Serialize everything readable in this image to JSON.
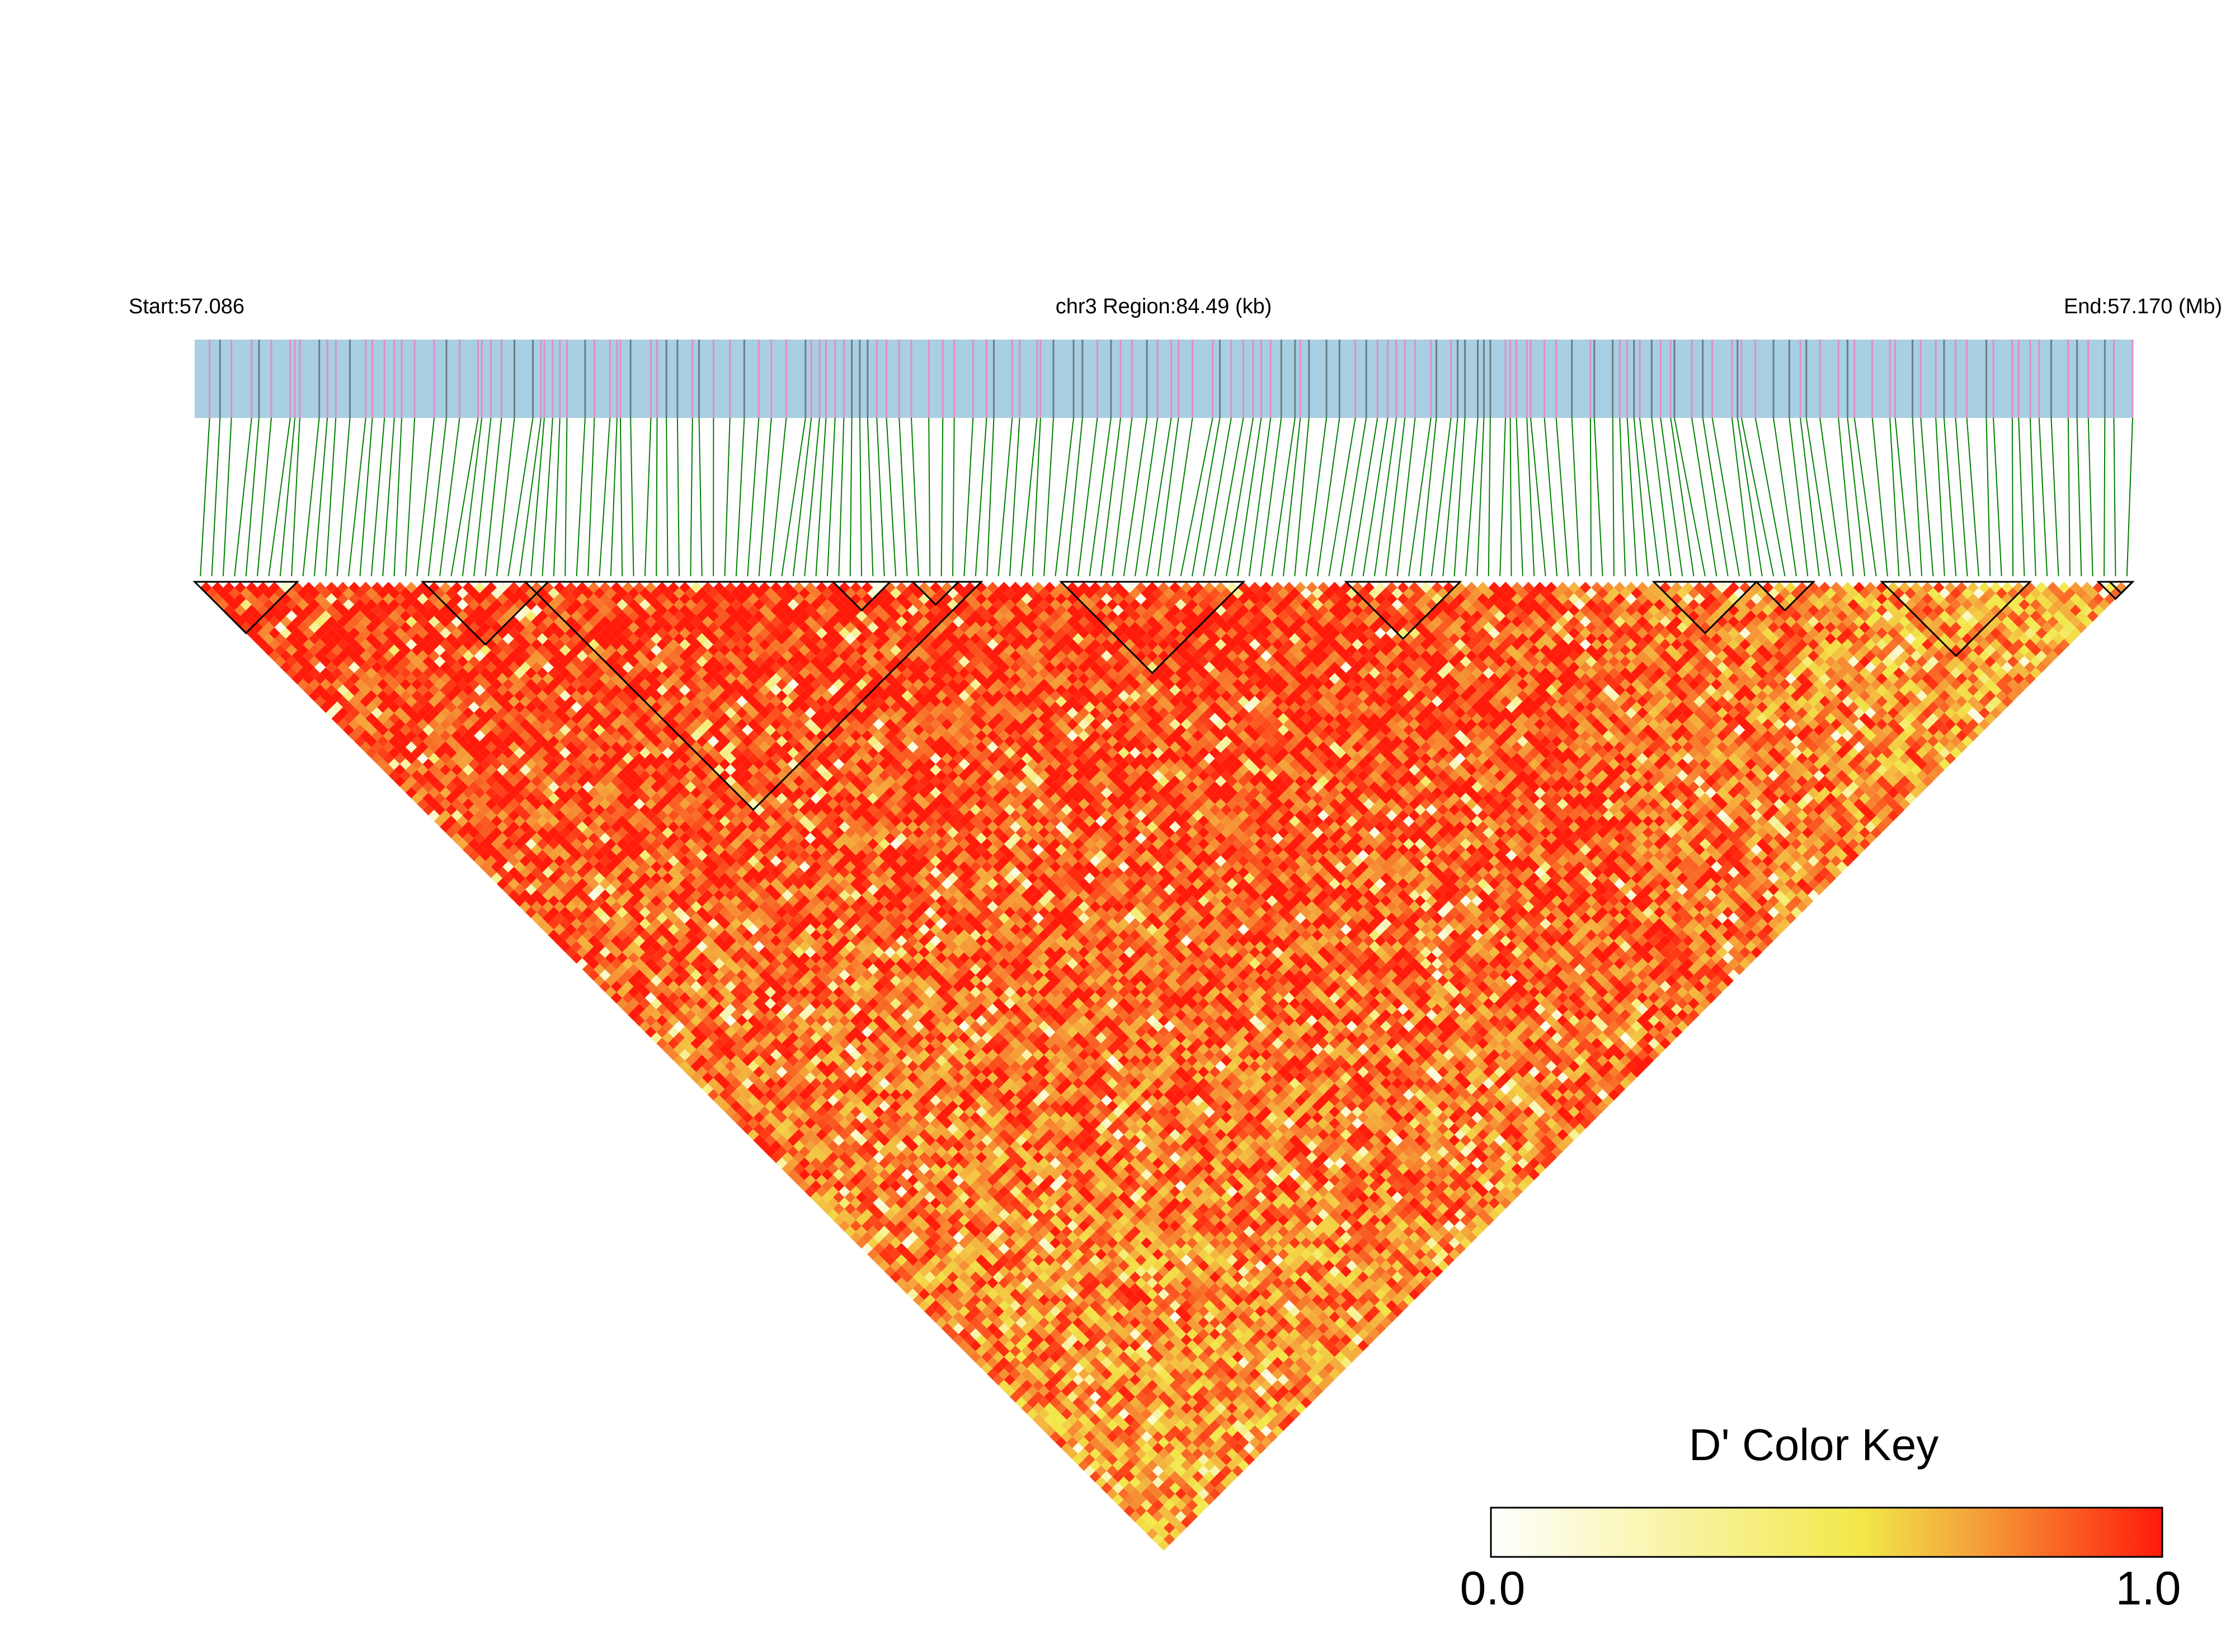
{
  "header": {
    "start_label": "Start:57.086",
    "region_label": "chr3 Region:84.49 (kb)",
    "end_label": "End:57.170 (Mb)"
  },
  "color_key": {
    "title": "D' Color Key",
    "min_label": "0.0",
    "max_label": "1.0",
    "colors": [
      "#ffffff",
      "#f2e84a",
      "#f5a23a",
      "#ff1a0a"
    ]
  },
  "track_colors": {
    "track_background": "#a8cfe2",
    "snp_tick_pink": "#e58cc9",
    "snp_tick_gray": "#6b7f86",
    "connector": "#008000",
    "block_outline": "#000000"
  },
  "chart_data": {
    "type": "heatmap",
    "title": "",
    "xlabel": "",
    "ylabel": "",
    "chromosome": "chr3",
    "region_start_mb": 57.086,
    "region_end_mb": 57.17,
    "region_size_kb": 84.49,
    "value_range": [
      0.0,
      1.0
    ],
    "metric": "D'",
    "legend_position": "bottom-right"
  }
}
